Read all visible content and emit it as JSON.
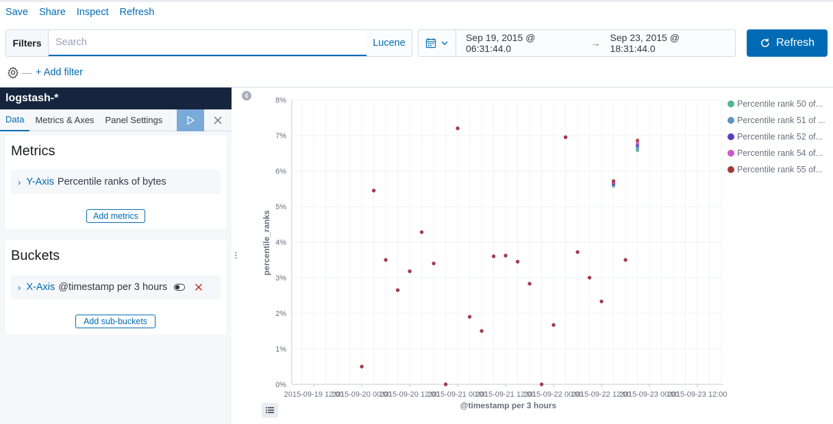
{
  "topnav": {
    "items": [
      "Save",
      "Share",
      "Inspect",
      "Refresh"
    ]
  },
  "filterbar": {
    "label": "Filters",
    "search_placeholder": "Search",
    "query_language": "Lucene"
  },
  "datepicker": {
    "start": "Sep 19, 2015 @ 06:31:44.0",
    "arrow": "→",
    "end": "Sep 23, 2015 @ 18:31:44.0"
  },
  "refresh_button": {
    "label": "Refresh"
  },
  "filter_row": {
    "add_filter": "+ Add filter"
  },
  "sidebar": {
    "index_pattern": "logstash-*",
    "tabs": [
      "Data",
      "Metrics & Axes",
      "Panel Settings"
    ],
    "metrics": {
      "title": "Metrics",
      "axis": "Y-Axis",
      "description": "Percentile ranks of bytes",
      "add_button": "Add metrics"
    },
    "buckets": {
      "title": "Buckets",
      "axis": "X-Axis",
      "description": "@timestamp per 3 hours",
      "add_button": "Add sub-buckets"
    }
  },
  "colors": {
    "accent": "#006bb4",
    "header_dark": "#16253d"
  },
  "chart_data": {
    "type": "scatter",
    "xlabel": "@timestamp per 3 hours",
    "ylabel": "percentile_ranks",
    "y_ticks": [
      "0%",
      "1%",
      "2%",
      "3%",
      "4%",
      "5%",
      "6%",
      "7%",
      "8%"
    ],
    "ylim": [
      0,
      8
    ],
    "x_ticks": [
      "2015-09-19 12:00",
      "2015-09-20 00:00",
      "2015-09-20 12:00",
      "2015-09-21 00:00",
      "2015-09-21 12:00",
      "2015-09-22 00:00",
      "2015-09-22 12:00",
      "2015-09-23 00:00",
      "2015-09-23 12:00"
    ],
    "x_tick_hours": [
      12,
      24,
      36,
      48,
      60,
      72,
      84,
      96,
      108
    ],
    "xlim_hours": [
      6.5,
      114.5
    ],
    "grid": true,
    "legend_position": "right",
    "series": [
      {
        "name": "Percentile rank 50 of...",
        "color": "#54b399"
      },
      {
        "name": "Percentile rank 51 of ...",
        "color": "#6092c0"
      },
      {
        "name": "Percentile rank 52 of...",
        "color": "#5e3dbd"
      },
      {
        "name": "Percentile rank 54 of...",
        "color": "#ca59c6"
      },
      {
        "name": "Percentile rank 55 of...",
        "color": "#a33b35"
      }
    ],
    "points": [
      {
        "x": 24,
        "y": 0.5
      },
      {
        "x": 27,
        "y": 5.45
      },
      {
        "x": 30,
        "y": 3.5
      },
      {
        "x": 33,
        "y": 2.65
      },
      {
        "x": 36,
        "y": 3.18
      },
      {
        "x": 39,
        "y": 4.28
      },
      {
        "x": 42,
        "y": 3.4
      },
      {
        "x": 45,
        "y": 0
      },
      {
        "x": 48,
        "y": 7.2
      },
      {
        "x": 51,
        "y": 1.9
      },
      {
        "x": 54,
        "y": 1.5
      },
      {
        "x": 57,
        "y": 3.6
      },
      {
        "x": 60,
        "y": 3.62
      },
      {
        "x": 63,
        "y": 3.45
      },
      {
        "x": 66,
        "y": 2.83
      },
      {
        "x": 69,
        "y": 0
      },
      {
        "x": 72,
        "y": 1.67
      },
      {
        "x": 75,
        "y": 6.95
      },
      {
        "x": 78,
        "y": 3.72
      },
      {
        "x": 81,
        "y": 3.0
      },
      {
        "x": 84,
        "y": 2.33
      },
      {
        "x": 87,
        "y": 5.65,
        "spread": [
          5.58,
          5.72
        ]
      },
      {
        "x": 90,
        "y": 3.5
      },
      {
        "x": 93,
        "y": 6.7,
        "spread": [
          6.58,
          6.86
        ]
      }
    ]
  }
}
